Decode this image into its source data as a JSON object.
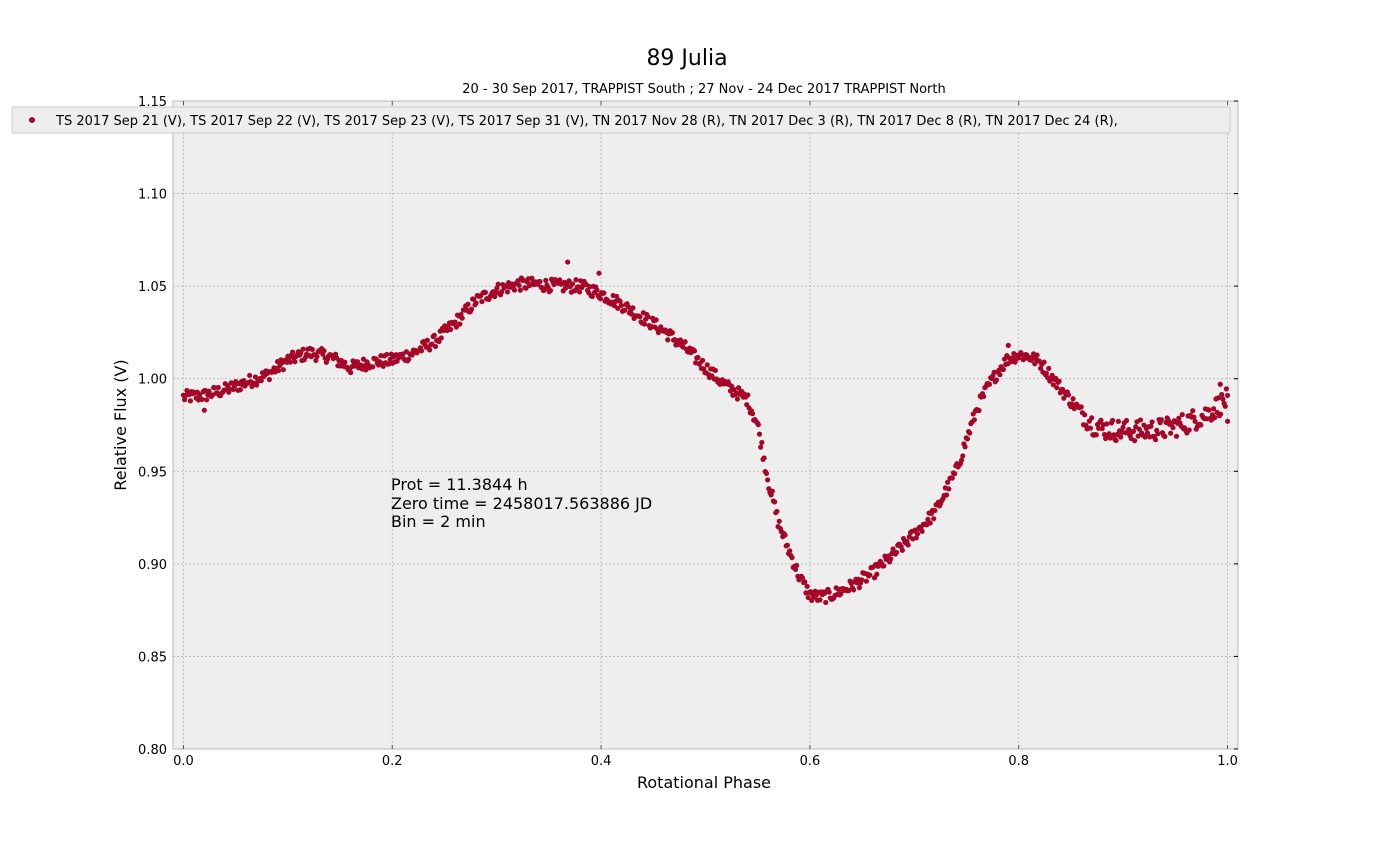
{
  "chart_data": {
    "type": "scatter",
    "title": "89 Julia",
    "subtitle": "20 - 30 Sep 2017, TRAPPIST South ; 27 Nov - 24 Dec 2017 TRAPPIST North",
    "xlabel": "Rotational Phase",
    "ylabel": "Relative Flux (V)",
    "xlim": [
      -0.01,
      1.01
    ],
    "ylim": [
      0.8,
      1.15
    ],
    "xticks": [
      "0.0",
      "0.2",
      "0.4",
      "0.6",
      "0.8",
      "1.0"
    ],
    "yticks": [
      "0.80",
      "0.85",
      "0.90",
      "0.95",
      "1.00",
      "1.05",
      "1.10",
      "1.15"
    ],
    "grid": true,
    "legend_position": "top",
    "marker_color": "#a60628",
    "legend": "TS 2017 Sep 21  (V), TS 2017 Sep 22  (V), TS 2017 Sep 23  (V), TS 2017 Sep 31  (V), TN 2017 Nov 28  (R), TN 2017 Dec 3  (R), TN 2017 Dec 8  (R), TN 2017 Dec 24  (R),",
    "annotation": [
      "Prot = 11.3844 h",
      "Zero time = 2458017.563886 JD",
      "Bin = 2 min"
    ],
    "curve": [
      [
        0.0,
        0.99
      ],
      [
        0.02,
        0.991
      ],
      [
        0.04,
        0.994
      ],
      [
        0.06,
        0.998
      ],
      [
        0.08,
        1.002
      ],
      [
        0.1,
        1.01
      ],
      [
        0.12,
        1.014
      ],
      [
        0.14,
        1.012
      ],
      [
        0.16,
        1.006
      ],
      [
        0.18,
        1.009
      ],
      [
        0.2,
        1.01
      ],
      [
        0.22,
        1.014
      ],
      [
        0.24,
        1.02
      ],
      [
        0.26,
        1.03
      ],
      [
        0.28,
        1.042
      ],
      [
        0.3,
        1.048
      ],
      [
        0.32,
        1.051
      ],
      [
        0.34,
        1.051
      ],
      [
        0.36,
        1.05
      ],
      [
        0.38,
        1.05
      ],
      [
        0.4,
        1.046
      ],
      [
        0.42,
        1.04
      ],
      [
        0.44,
        1.033
      ],
      [
        0.46,
        1.026
      ],
      [
        0.48,
        1.017
      ],
      [
        0.5,
        1.006
      ],
      [
        0.52,
        0.996
      ],
      [
        0.54,
        0.989
      ],
      [
        0.55,
        0.975
      ],
      [
        0.56,
        0.945
      ],
      [
        0.57,
        0.922
      ],
      [
        0.58,
        0.907
      ],
      [
        0.59,
        0.893
      ],
      [
        0.6,
        0.883
      ],
      [
        0.61,
        0.882
      ],
      [
        0.62,
        0.883
      ],
      [
        0.64,
        0.888
      ],
      [
        0.66,
        0.895
      ],
      [
        0.68,
        0.905
      ],
      [
        0.7,
        0.916
      ],
      [
        0.72,
        0.928
      ],
      [
        0.74,
        0.95
      ],
      [
        0.75,
        0.967
      ],
      [
        0.76,
        0.984
      ],
      [
        0.77,
        0.995
      ],
      [
        0.78,
        1.004
      ],
      [
        0.79,
        1.011
      ],
      [
        0.8,
        1.013
      ],
      [
        0.81,
        1.012
      ],
      [
        0.82,
        1.009
      ],
      [
        0.83,
        1.002
      ],
      [
        0.84,
        0.995
      ],
      [
        0.85,
        0.988
      ],
      [
        0.86,
        0.982
      ],
      [
        0.87,
        0.976
      ],
      [
        0.88,
        0.973
      ],
      [
        0.9,
        0.972
      ],
      [
        0.92,
        0.972
      ],
      [
        0.94,
        0.973
      ],
      [
        0.96,
        0.976
      ],
      [
        0.98,
        0.981
      ],
      [
        1.0,
        0.989
      ]
    ],
    "outliers": [
      [
        0.02,
        0.983
      ],
      [
        0.368,
        1.063
      ],
      [
        0.398,
        1.057
      ],
      [
        0.79,
        1.018
      ],
      [
        0.993,
        0.997
      ],
      [
        1.0,
        0.977
      ],
      [
        0.985,
        0.978
      ]
    ]
  }
}
